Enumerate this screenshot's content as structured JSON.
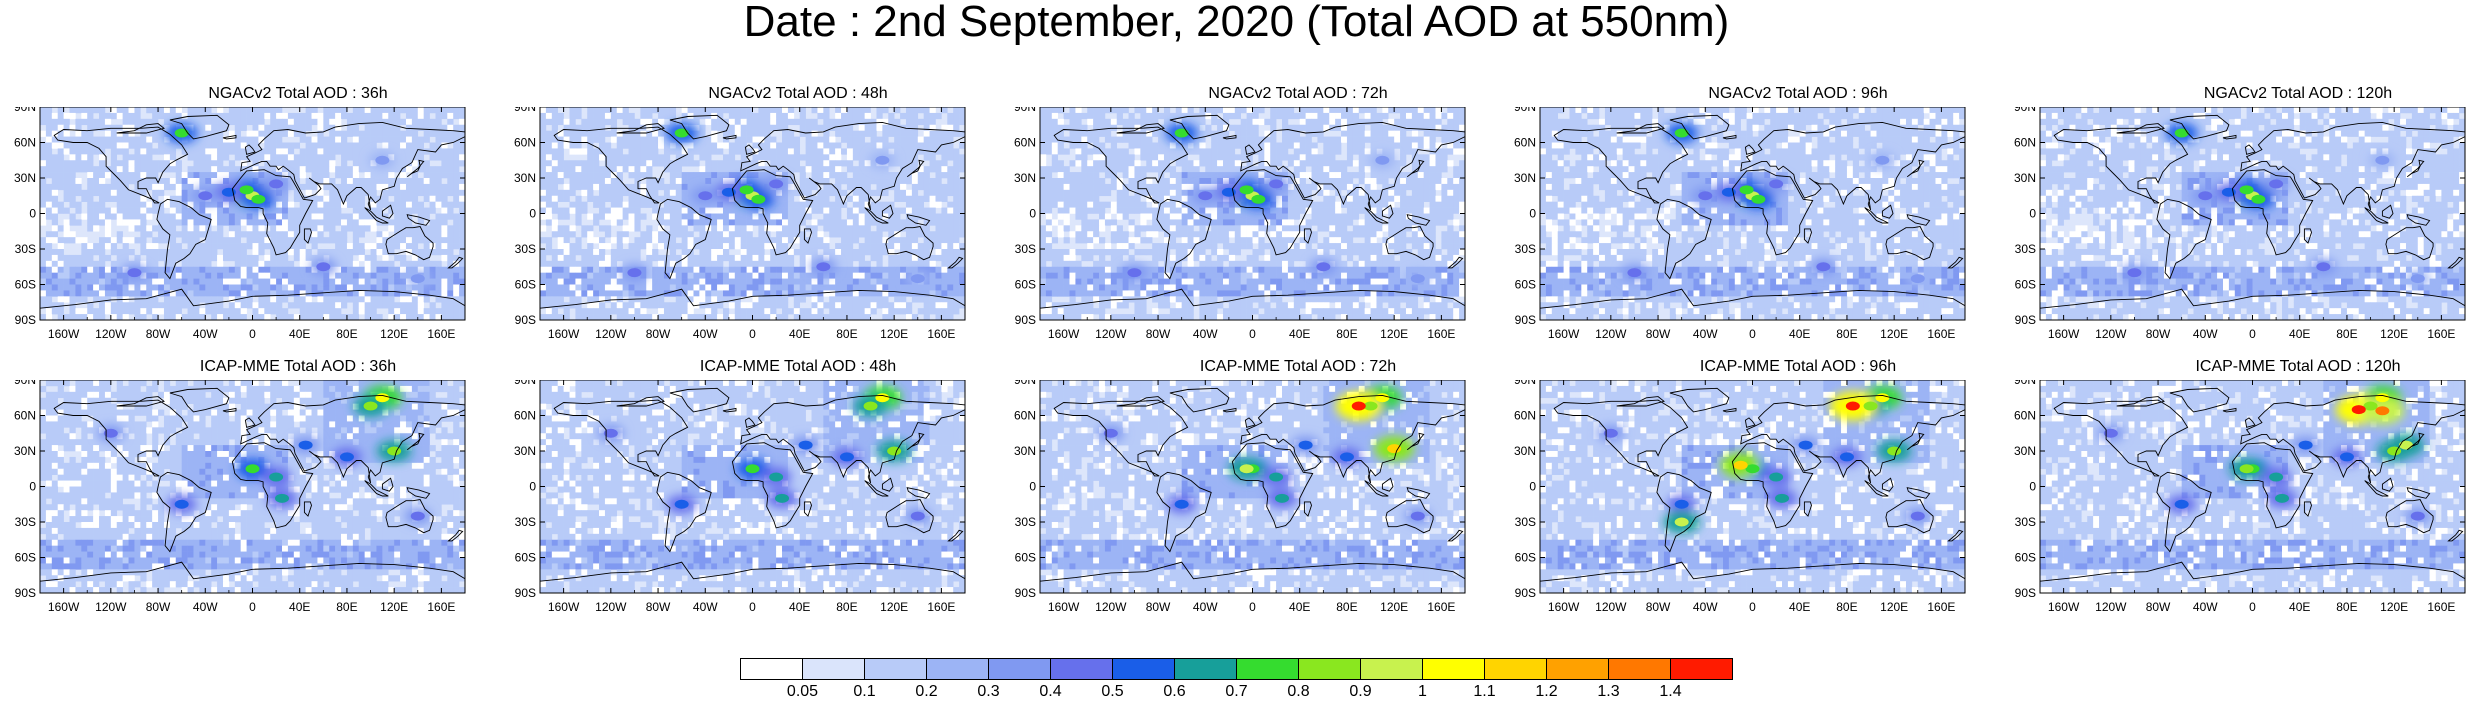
{
  "title": "Date : 2nd September, 2020 (Total AOD at 550nm)",
  "panels": [
    {
      "id": "ngac-36",
      "label": "NGACv2 Total AOD : 36h",
      "model": "ngac",
      "lead": 36
    },
    {
      "id": "ngac-48",
      "label": "NGACv2 Total AOD : 48h",
      "model": "ngac",
      "lead": 48
    },
    {
      "id": "ngac-72",
      "label": "NGACv2 Total AOD : 72h",
      "model": "ngac",
      "lead": 72
    },
    {
      "id": "ngac-96",
      "label": "NGACv2 Total AOD : 96h",
      "model": "ngac",
      "lead": 96
    },
    {
      "id": "ngac-120",
      "label": "NGACv2 Total AOD : 120h",
      "model": "ngac",
      "lead": 120
    },
    {
      "id": "icap-36",
      "label": "ICAP-MME Total AOD : 36h",
      "model": "icap",
      "lead": 36
    },
    {
      "id": "icap-48",
      "label": "ICAP-MME Total AOD : 48h",
      "model": "icap",
      "lead": 48
    },
    {
      "id": "icap-72",
      "label": "ICAP-MME Total AOD : 72h",
      "model": "icap",
      "lead": 72
    },
    {
      "id": "icap-96",
      "label": "ICAP-MME Total AOD : 96h",
      "model": "icap",
      "lead": 96
    },
    {
      "id": "icap-120",
      "label": "ICAP-MME Total AOD : 120h",
      "model": "icap",
      "lead": 120
    }
  ],
  "lat_ticks": [
    "90N",
    "60N",
    "30N",
    "0",
    "30S",
    "60S",
    "90S"
  ],
  "lon_ticks": [
    "160W",
    "120W",
    "80W",
    "40W",
    "0",
    "40E",
    "80E",
    "120E",
    "160E"
  ],
  "lat_values": [
    90,
    60,
    30,
    0,
    -30,
    -60,
    -90
  ],
  "lon_values": [
    -160,
    -120,
    -80,
    -40,
    0,
    40,
    80,
    120,
    160
  ],
  "colorbar": {
    "labels": [
      "0.05",
      "0.1",
      "0.2",
      "0.3",
      "0.4",
      "0.5",
      "0.6",
      "0.7",
      "0.8",
      "0.9",
      "1",
      "1.1",
      "1.2",
      "1.3",
      "1.4"
    ],
    "colors": [
      "#ffffff",
      "#dae4fb",
      "#b8cbf8",
      "#9cb4f5",
      "#8099f1",
      "#6670ec",
      "#1a5ee8",
      "#179f9a",
      "#35dc2f",
      "#8ae71f",
      "#c8f24e",
      "#ffff00",
      "#ffd400",
      "#ffa100",
      "#ff7800",
      "#ff1b00"
    ]
  },
  "hotspots": {
    "ngac": [
      {
        "lon": 0,
        "lat": 15,
        "v": 0.9
      },
      {
        "lon": -5,
        "lat": 20,
        "v": 0.75
      },
      {
        "lon": 5,
        "lat": 12,
        "v": 0.7
      },
      {
        "lon": -20,
        "lat": 18,
        "v": 0.55
      },
      {
        "lon": -40,
        "lat": 15,
        "v": 0.45
      },
      {
        "lon": 20,
        "lat": 25,
        "v": 0.45
      },
      {
        "lon": -60,
        "lat": 68,
        "v": 0.7
      },
      {
        "lon": 110,
        "lat": 45,
        "v": 0.35
      },
      {
        "lon": 60,
        "lat": -45,
        "v": 0.4
      },
      {
        "lon": -100,
        "lat": -50,
        "v": 0.4
      },
      {
        "lon": 140,
        "lat": -55,
        "v": 0.35
      }
    ],
    "icap": [
      {
        "lon": 110,
        "lat": 75,
        "v": 1.0
      },
      {
        "lon": 100,
        "lat": 68,
        "v": 0.8
      },
      {
        "lon": 120,
        "lat": 30,
        "v": 0.8
      },
      {
        "lon": 0,
        "lat": 15,
        "v": 0.75
      },
      {
        "lon": 20,
        "lat": 8,
        "v": 0.6
      },
      {
        "lon": 80,
        "lat": 25,
        "v": 0.55
      },
      {
        "lon": -60,
        "lat": -15,
        "v": 0.55
      },
      {
        "lon": 25,
        "lat": -10,
        "v": 0.6
      },
      {
        "lon": -120,
        "lat": 45,
        "v": 0.4
      },
      {
        "lon": 140,
        "lat": -25,
        "v": 0.4
      },
      {
        "lon": 45,
        "lat": 35,
        "v": 0.5
      }
    ],
    "icap_extra": {
      "72": [
        {
          "lon": 90,
          "lat": 68,
          "v": 1.4
        },
        {
          "lon": 120,
          "lat": 32,
          "v": 1.1
        },
        {
          "lon": -5,
          "lat": 15,
          "v": 0.9
        }
      ],
      "96": [
        {
          "lon": 85,
          "lat": 68,
          "v": 1.4
        },
        {
          "lon": -10,
          "lat": 18,
          "v": 1.1
        },
        {
          "lon": -60,
          "lat": -30,
          "v": 0.9
        }
      ],
      "120": [
        {
          "lon": 90,
          "lat": 65,
          "v": 1.4
        },
        {
          "lon": 110,
          "lat": 64,
          "v": 1.3
        },
        {
          "lon": 130,
          "lat": 35,
          "v": 0.9
        },
        {
          "lon": -5,
          "lat": 15,
          "v": 0.8
        }
      ]
    }
  }
}
